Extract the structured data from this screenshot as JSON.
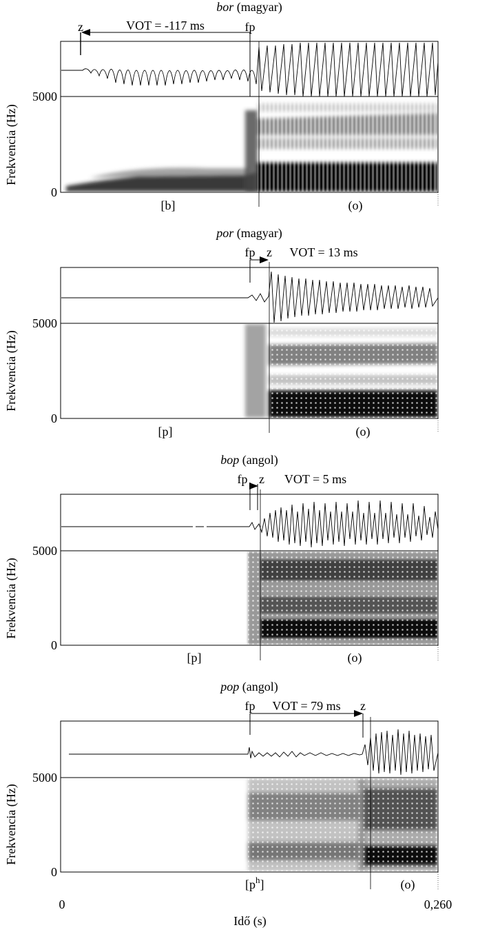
{
  "panels": [
    {
      "word": "bor",
      "language": "(magyar)",
      "vot_label": "VOT = -117 ms",
      "release_label": "fp",
      "voicing_label": "z",
      "consonant_label": "[b]",
      "vowel_label": "(o)",
      "ytick_top": "5000",
      "ytick_zero": "0",
      "ylabel": "Frekvencia (Hz)"
    },
    {
      "word": "por",
      "language": "(magyar)",
      "vot_label": "VOT = 13 ms",
      "release_label": "fp",
      "voicing_label": "z",
      "consonant_label": "[p]",
      "vowel_label": "(o)",
      "ytick_top": "5000",
      "ytick_zero": "0",
      "ylabel": "Frekvencia (Hz)"
    },
    {
      "word": "bop",
      "language": "(angol)",
      "vot_label": "VOT = 5 ms",
      "release_label": "fp",
      "voicing_label": "z",
      "consonant_label": "[p]",
      "vowel_label": "(o)",
      "ytick_top": "5000",
      "ytick_zero": "0",
      "ylabel": "Frekvencia (Hz)"
    },
    {
      "word": "pop",
      "language": "(angol)",
      "vot_label": "VOT = 79 ms",
      "release_label": "fp",
      "voicing_label": "z",
      "consonant_label": "[p",
      "consonant_sup": "h",
      "consonant_close": "]",
      "vowel_label": "(o)",
      "ytick_top": "5000",
      "ytick_zero": "0",
      "ylabel": "Frekvencia (Hz)"
    }
  ],
  "time_axis": {
    "start_label": "0",
    "end_label": "0,260",
    "label": "Idő (s)"
  }
}
